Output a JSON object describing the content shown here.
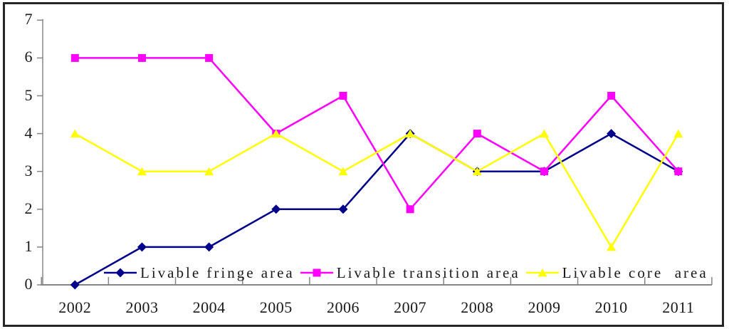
{
  "chart_data": {
    "type": "line",
    "title": "",
    "xlabel": "",
    "ylabel": "",
    "categories": [
      "2002",
      "2003",
      "2004",
      "2005",
      "2006",
      "2007",
      "2008",
      "2009",
      "2010",
      "2011"
    ],
    "series": [
      {
        "name": "Livable fringe area",
        "color": "#00008B",
        "marker": "diamond",
        "values": [
          0,
          1,
          1,
          2,
          2,
          4,
          3,
          3,
          4,
          3
        ]
      },
      {
        "name": "Livable transition area",
        "color": "#FF00FF",
        "marker": "square",
        "values": [
          6,
          6,
          6,
          4,
          5,
          2,
          4,
          3,
          5,
          3
        ]
      },
      {
        "name": "Livable core  area",
        "color": "#FFFF00",
        "marker": "triangle",
        "values": [
          4,
          3,
          3,
          4,
          3,
          4,
          3,
          4,
          1,
          4
        ]
      }
    ],
    "ylim": [
      0,
      7
    ],
    "yticks": [
      0,
      1,
      2,
      3,
      4,
      5,
      6,
      7
    ],
    "grid": false,
    "legend_position": "bottom-inside",
    "axis_color": "#858585",
    "text_color": "#1a1a1a"
  }
}
